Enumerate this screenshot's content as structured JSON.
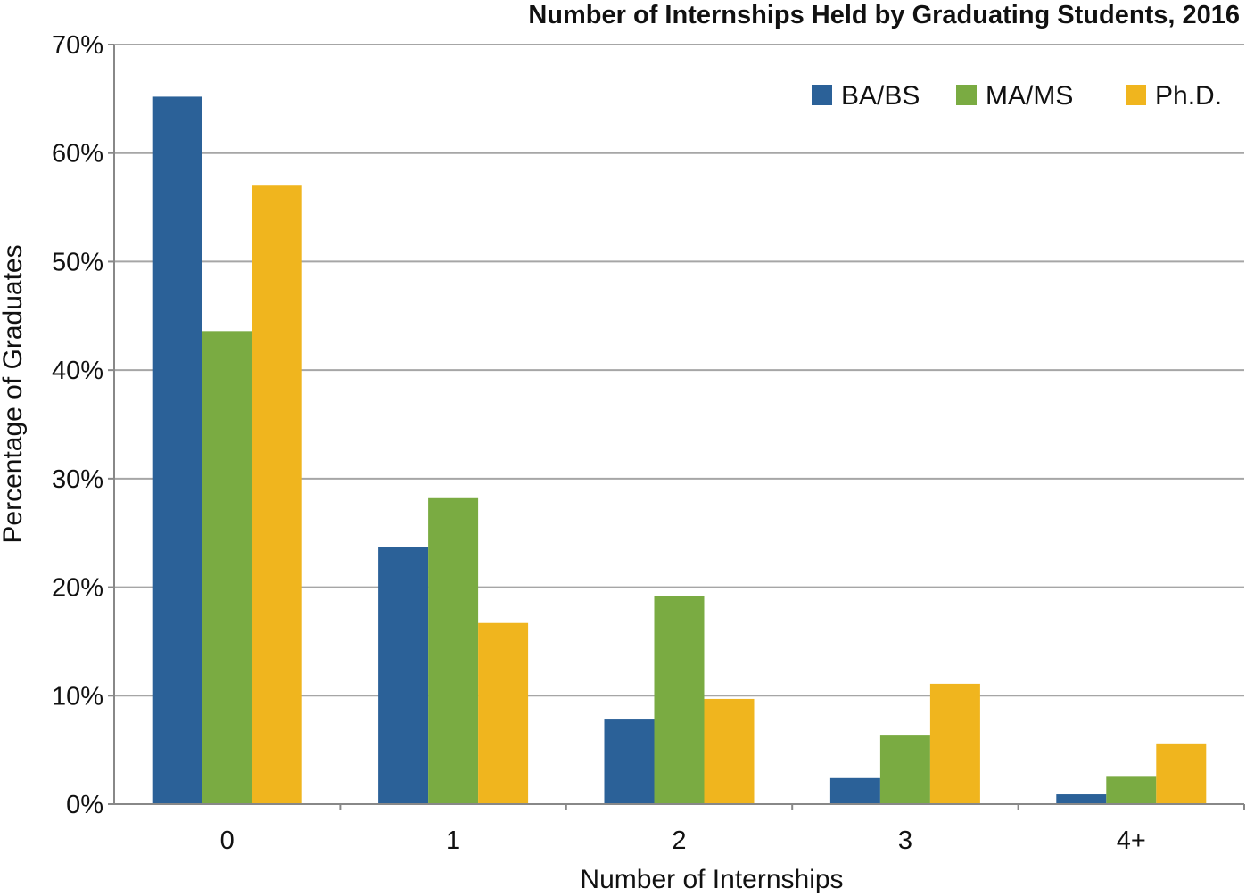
{
  "chart_data": {
    "type": "bar",
    "title": "Number of Internships Held by Graduating Students, 2016",
    "xlabel": "Number of Internships",
    "ylabel": "Percentage of Graduates",
    "categories": [
      "0",
      "1",
      "2",
      "3",
      "4+"
    ],
    "ylim": [
      0,
      70
    ],
    "yticks": [
      0,
      10,
      20,
      30,
      40,
      50,
      60,
      70
    ],
    "ytick_labels": [
      "0%",
      "10%",
      "20%",
      "30%",
      "40%",
      "50%",
      "60%",
      "70%"
    ],
    "grid": true,
    "legend_position": "top-right",
    "series": [
      {
        "name": "BA/BS",
        "color": "#2b6198",
        "values": [
          65.2,
          23.7,
          7.8,
          2.4,
          0.9
        ]
      },
      {
        "name": "MA/MS",
        "color": "#7aab42",
        "values": [
          43.6,
          28.2,
          19.2,
          6.4,
          2.6
        ]
      },
      {
        "name": "Ph.D.",
        "color": "#f0b51e",
        "values": [
          57.0,
          16.7,
          9.7,
          11.1,
          5.6
        ]
      }
    ]
  }
}
